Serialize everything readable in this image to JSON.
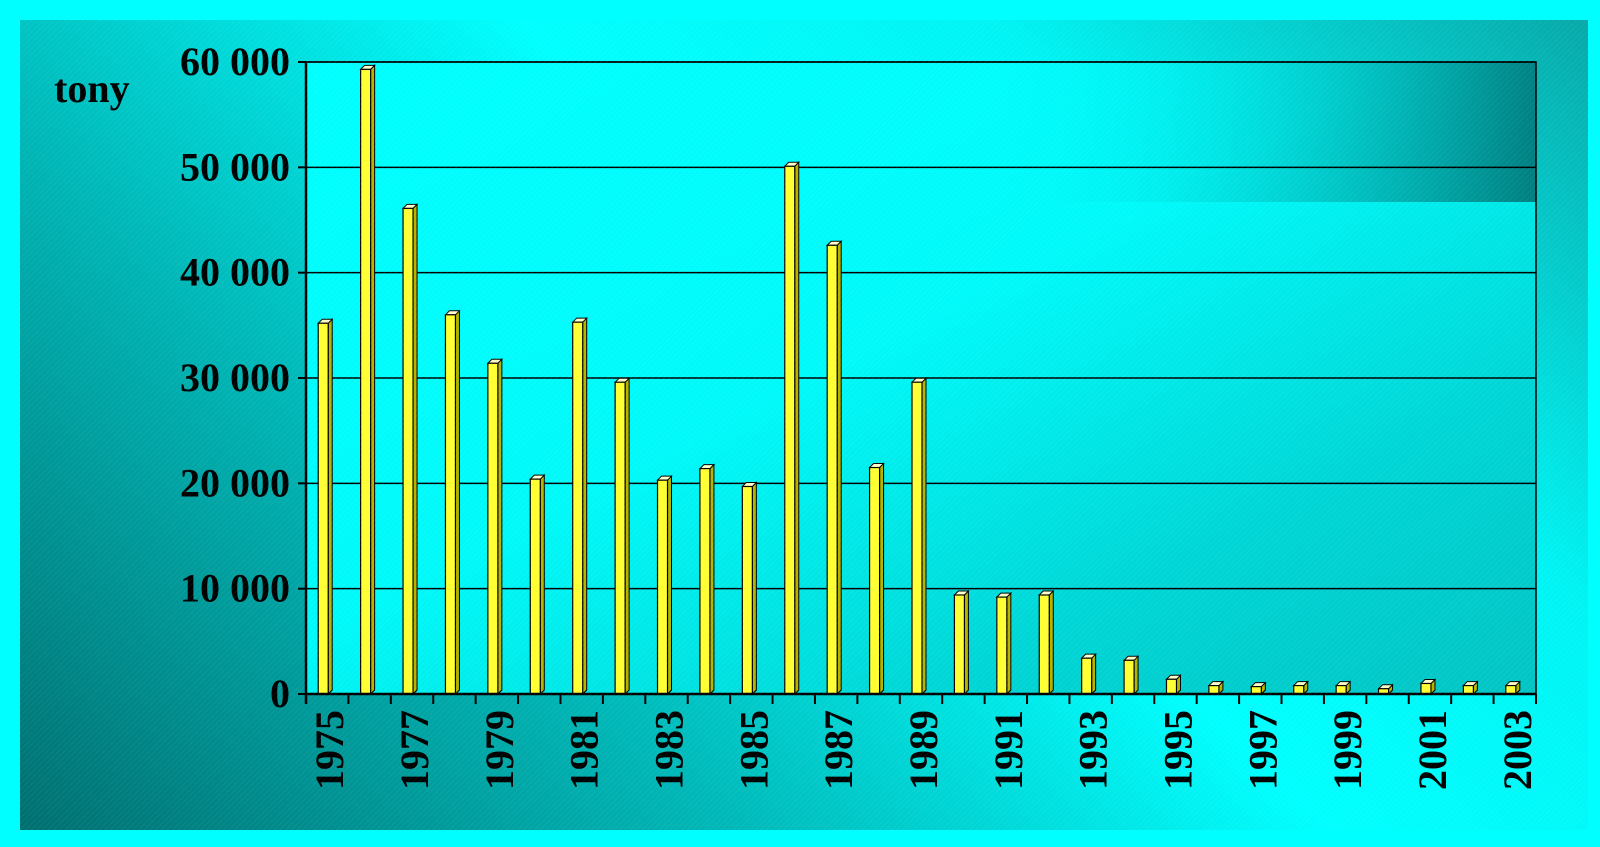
{
  "chart_data": {
    "type": "bar",
    "title": "",
    "xlabel": "",
    "ylabel": "tony",
    "ylim": [
      0,
      60000
    ],
    "y_ticks": [
      0,
      10000,
      20000,
      30000,
      40000,
      50000,
      60000
    ],
    "y_tick_labels": [
      "0",
      "10 000",
      "20 000",
      "30 000",
      "40 000",
      "50 000",
      "60 000"
    ],
    "grid": true,
    "legend": "none",
    "bar_color": "#ffff33",
    "categories": [
      1975,
      1976,
      1977,
      1978,
      1979,
      1980,
      1981,
      1982,
      1983,
      1984,
      1985,
      1986,
      1987,
      1988,
      1989,
      1990,
      1991,
      1992,
      1993,
      1994,
      1995,
      1996,
      1997,
      1998,
      1999,
      2000,
      2001,
      2002,
      2003
    ],
    "x_tick_labels": [
      "1975",
      "1977",
      "1979",
      "1981",
      "1983",
      "1985",
      "1987",
      "1989",
      "1991",
      "1993",
      "1995",
      "1997",
      "1999",
      "2001",
      "2003"
    ],
    "values": [
      35200,
      59300,
      46100,
      36000,
      31400,
      20400,
      35300,
      29600,
      20300,
      21400,
      19700,
      50100,
      42600,
      21500,
      29600,
      9400,
      9200,
      9400,
      3400,
      3200,
      1400,
      800,
      700,
      800,
      800,
      500,
      1000,
      800,
      800
    ]
  }
}
